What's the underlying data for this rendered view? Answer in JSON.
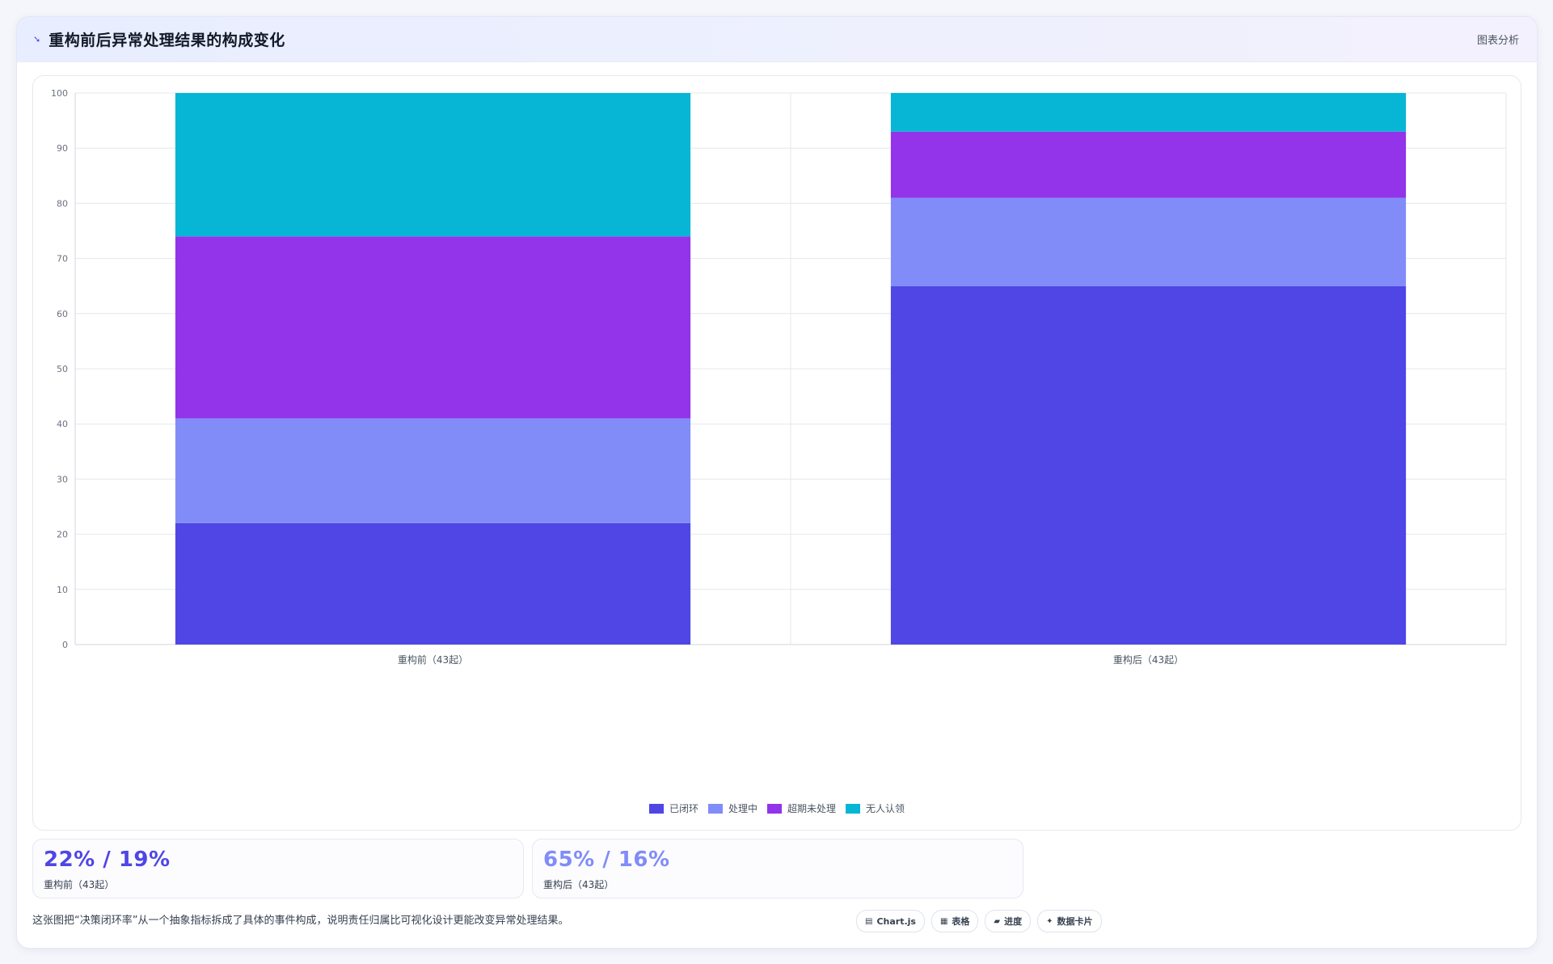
{
  "header": {
    "icon": "chart-line-icon",
    "title": "重构前后异常处理结果的构成变化",
    "link_label": "图表分析"
  },
  "chart_data": {
    "type": "bar",
    "stacked": true,
    "categories": [
      "重构前（43起）",
      "重构后（43起）"
    ],
    "series": [
      {
        "name": "已闭环",
        "color": "#4f46e5",
        "values": [
          22,
          65
        ]
      },
      {
        "name": "处理中",
        "color": "#818cf8",
        "values": [
          19,
          16
        ]
      },
      {
        "name": "超期未处理",
        "color": "#9333ea",
        "values": [
          33,
          12
        ]
      },
      {
        "name": "无人认领",
        "color": "#06b6d4",
        "values": [
          26,
          7
        ]
      }
    ],
    "ylim": [
      0,
      100
    ],
    "yticks": [
      0,
      10,
      20,
      30,
      40,
      50,
      60,
      70,
      80,
      90,
      100
    ],
    "grid": true,
    "legend_position": "bottom"
  },
  "stats": [
    {
      "value": "22% / 19%",
      "label": "重构前（43起）",
      "color": "#4f46e5"
    },
    {
      "value": "65% / 16%",
      "label": "重构后（43起）",
      "color": "#818cf8"
    }
  ],
  "footnote": "这张图把“决策闭环率”从一个抽象指标拆成了具体的事件构成，说明责任归属比可视化设计更能改变异常处理结果。",
  "tags": [
    {
      "icon": "▤",
      "icon_name": "chart-icon",
      "label": "Chart.js"
    },
    {
      "icon": "▦",
      "icon_name": "table-icon",
      "label": "表格"
    },
    {
      "icon": "▰",
      "icon_name": "progress-icon",
      "label": "进度"
    },
    {
      "icon": "✦",
      "icon_name": "card-icon",
      "label": "数据卡片"
    }
  ]
}
